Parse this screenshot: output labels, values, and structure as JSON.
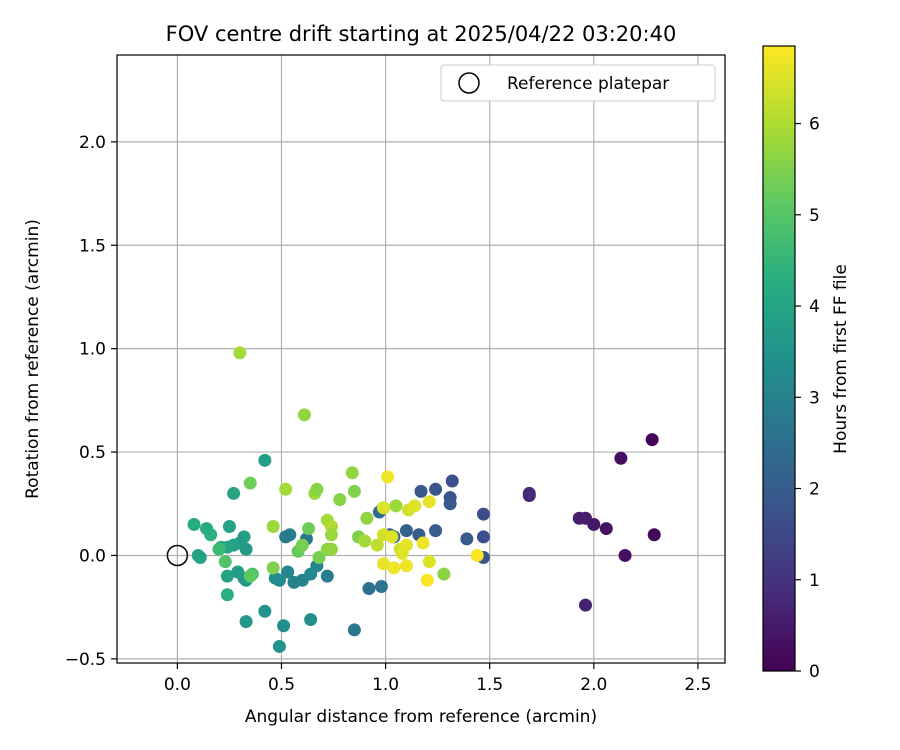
{
  "chart_data": {
    "type": "scatter",
    "title": "FOV centre drift starting at 2025/04/22 03:20:40",
    "xlabel": "Angular distance from reference (arcmin)",
    "ylabel": "Rotation from reference (arcmin)",
    "xlim": [
      -0.29,
      2.63
    ],
    "ylim": [
      -0.52,
      2.42
    ],
    "xticks": [
      0.0,
      0.5,
      1.0,
      1.5,
      2.0,
      2.5
    ],
    "xtick_labels": [
      "0.0",
      "0.5",
      "1.0",
      "1.5",
      "2.0",
      "2.5"
    ],
    "yticks": [
      -0.5,
      0.0,
      0.5,
      1.0,
      1.5,
      2.0
    ],
    "ytick_labels": [
      "−0.5",
      "0.0",
      "0.5",
      "1.0",
      "1.5",
      "2.0"
    ],
    "grid": true,
    "legend": {
      "placement": "top-right",
      "label": "Reference platepar"
    },
    "reference": {
      "x": 0.0,
      "y": 0.0
    },
    "colorbar": {
      "label": "Hours from first FF file",
      "range": [
        0,
        6.85
      ],
      "ticks": [
        0,
        1,
        2,
        3,
        4,
        5,
        6
      ],
      "tick_labels": [
        "0",
        "1",
        "2",
        "3",
        "4",
        "5",
        "6"
      ],
      "colormap": "viridis"
    },
    "points": [
      {
        "x": 2.28,
        "y": 0.56,
        "c": 0.1
      },
      {
        "x": 2.13,
        "y": 0.47,
        "c": 0.25
      },
      {
        "x": 2.29,
        "y": 0.1,
        "c": 0.15
      },
      {
        "x": 2.15,
        "y": 0.0,
        "c": 0.3
      },
      {
        "x": 2.06,
        "y": 0.13,
        "c": 0.35
      },
      {
        "x": 2.0,
        "y": 0.15,
        "c": 0.45
      },
      {
        "x": 1.96,
        "y": 0.18,
        "c": 0.5
      },
      {
        "x": 1.93,
        "y": 0.18,
        "c": 0.6
      },
      {
        "x": 1.96,
        "y": -0.24,
        "c": 0.65
      },
      {
        "x": 1.69,
        "y": 0.29,
        "c": 0.7
      },
      {
        "x": 1.69,
        "y": 0.3,
        "c": 0.8
      },
      {
        "x": 1.47,
        "y": 0.2,
        "c": 1.6
      },
      {
        "x": 1.47,
        "y": 0.09,
        "c": 1.7
      },
      {
        "x": 1.47,
        "y": -0.01,
        "c": 1.8
      },
      {
        "x": 1.39,
        "y": 0.08,
        "c": 1.9
      },
      {
        "x": 1.32,
        "y": 0.36,
        "c": 1.7
      },
      {
        "x": 1.31,
        "y": 0.28,
        "c": 1.75
      },
      {
        "x": 1.31,
        "y": 0.25,
        "c": 1.9
      },
      {
        "x": 1.24,
        "y": 0.32,
        "c": 1.8
      },
      {
        "x": 1.24,
        "y": 0.12,
        "c": 2.0
      },
      {
        "x": 1.17,
        "y": 0.31,
        "c": 1.9
      },
      {
        "x": 1.16,
        "y": 0.1,
        "c": 2.0
      },
      {
        "x": 1.1,
        "y": 0.12,
        "c": 2.1
      },
      {
        "x": 1.04,
        "y": 0.09,
        "c": 2.2
      },
      {
        "x": 1.02,
        "y": 0.1,
        "c": 2.1
      },
      {
        "x": 0.99,
        "y": 0.23,
        "c": 2.3
      },
      {
        "x": 0.97,
        "y": 0.21,
        "c": 2.4
      },
      {
        "x": 0.98,
        "y": -0.15,
        "c": 2.6
      },
      {
        "x": 0.92,
        "y": -0.16,
        "c": 2.5
      },
      {
        "x": 0.85,
        "y": -0.36,
        "c": 2.7
      },
      {
        "x": 0.72,
        "y": -0.1,
        "c": 2.9
      },
      {
        "x": 0.67,
        "y": -0.05,
        "c": 3.1
      },
      {
        "x": 0.64,
        "y": -0.09,
        "c": 3.2
      },
      {
        "x": 0.64,
        "y": -0.31,
        "c": 3.3
      },
      {
        "x": 0.62,
        "y": 0.08,
        "c": 2.7
      },
      {
        "x": 0.6,
        "y": -0.12,
        "c": 3.0
      },
      {
        "x": 0.56,
        "y": -0.13,
        "c": 3.0
      },
      {
        "x": 0.54,
        "y": 0.1,
        "c": 2.9
      },
      {
        "x": 0.52,
        "y": 0.09,
        "c": 2.8
      },
      {
        "x": 0.53,
        "y": -0.08,
        "c": 3.1
      },
      {
        "x": 0.51,
        "y": -0.34,
        "c": 3.4
      },
      {
        "x": 0.49,
        "y": -0.44,
        "c": 3.5
      },
      {
        "x": 0.49,
        "y": -0.12,
        "c": 3.2
      },
      {
        "x": 0.47,
        "y": -0.11,
        "c": 3.3
      },
      {
        "x": 0.42,
        "y": -0.27,
        "c": 3.5
      },
      {
        "x": 0.42,
        "y": 0.46,
        "c": 3.8
      },
      {
        "x": 0.33,
        "y": -0.32,
        "c": 3.6
      },
      {
        "x": 0.33,
        "y": -0.12,
        "c": 3.5
      },
      {
        "x": 0.32,
        "y": -0.11,
        "c": 3.6
      },
      {
        "x": 0.33,
        "y": 0.03,
        "c": 3.7
      },
      {
        "x": 0.32,
        "y": 0.09,
        "c": 3.8
      },
      {
        "x": 0.3,
        "y": 0.06,
        "c": 3.7
      },
      {
        "x": 0.29,
        "y": -0.08,
        "c": 3.8
      },
      {
        "x": 0.27,
        "y": 0.05,
        "c": 3.9
      },
      {
        "x": 0.27,
        "y": 0.3,
        "c": 4.0
      },
      {
        "x": 0.25,
        "y": 0.14,
        "c": 3.9
      },
      {
        "x": 0.24,
        "y": 0.04,
        "c": 4.0
      },
      {
        "x": 0.24,
        "y": -0.1,
        "c": 3.9
      },
      {
        "x": 0.24,
        "y": -0.19,
        "c": 4.3
      },
      {
        "x": 0.21,
        "y": 0.04,
        "c": 4.1
      },
      {
        "x": 0.2,
        "y": 0.03,
        "c": 4.6
      },
      {
        "x": 0.16,
        "y": 0.1,
        "c": 4.4
      },
      {
        "x": 0.14,
        "y": 0.13,
        "c": 4.2
      },
      {
        "x": 0.11,
        "y": -0.01,
        "c": 4.0
      },
      {
        "x": 0.1,
        "y": 0.0,
        "c": 3.9
      },
      {
        "x": 0.08,
        "y": 0.15,
        "c": 4.2
      },
      {
        "x": 0.23,
        "y": -0.03,
        "c": 4.9
      },
      {
        "x": 0.35,
        "y": 0.35,
        "c": 5.3
      },
      {
        "x": 0.36,
        "y": -0.09,
        "c": 4.9
      },
      {
        "x": 0.35,
        "y": -0.1,
        "c": 5.1
      },
      {
        "x": 0.46,
        "y": 0.14,
        "c": 5.8
      },
      {
        "x": 0.46,
        "y": -0.06,
        "c": 5.5
      },
      {
        "x": 0.52,
        "y": 0.32,
        "c": 5.9
      },
      {
        "x": 0.58,
        "y": 0.02,
        "c": 5.2
      },
      {
        "x": 0.6,
        "y": 0.05,
        "c": 5.4
      },
      {
        "x": 0.61,
        "y": 0.68,
        "c": 5.7
      },
      {
        "x": 0.63,
        "y": 0.13,
        "c": 5.3
      },
      {
        "x": 0.66,
        "y": 0.3,
        "c": 5.8
      },
      {
        "x": 0.67,
        "y": 0.32,
        "c": 5.6
      },
      {
        "x": 0.68,
        "y": -0.01,
        "c": 5.4
      },
      {
        "x": 0.72,
        "y": 0.03,
        "c": 5.6
      },
      {
        "x": 0.72,
        "y": 0.17,
        "c": 5.9
      },
      {
        "x": 0.74,
        "y": 0.03,
        "c": 5.7
      },
      {
        "x": 0.74,
        "y": 0.14,
        "c": 6.0
      },
      {
        "x": 0.74,
        "y": 0.1,
        "c": 5.8
      },
      {
        "x": 0.78,
        "y": 0.27,
        "c": 5.6
      },
      {
        "x": 0.84,
        "y": 0.4,
        "c": 5.7
      },
      {
        "x": 0.85,
        "y": 0.31,
        "c": 5.5
      },
      {
        "x": 0.87,
        "y": 0.09,
        "c": 5.5
      },
      {
        "x": 0.9,
        "y": 0.07,
        "c": 5.9
      },
      {
        "x": 0.91,
        "y": 0.18,
        "c": 5.7
      },
      {
        "x": 0.96,
        "y": 0.05,
        "c": 6.2
      },
      {
        "x": 0.99,
        "y": 0.23,
        "c": 6.5
      },
      {
        "x": 0.99,
        "y": 0.1,
        "c": 6.4
      },
      {
        "x": 0.99,
        "y": -0.04,
        "c": 6.6
      },
      {
        "x": 1.01,
        "y": 0.38,
        "c": 6.7
      },
      {
        "x": 1.03,
        "y": 0.09,
        "c": 6.5
      },
      {
        "x": 1.04,
        "y": -0.06,
        "c": 6.7
      },
      {
        "x": 1.05,
        "y": 0.24,
        "c": 5.8
      },
      {
        "x": 1.07,
        "y": 0.03,
        "c": 6.3
      },
      {
        "x": 1.08,
        "y": 0.01,
        "c": 6.5
      },
      {
        "x": 1.1,
        "y": 0.05,
        "c": 6.6
      },
      {
        "x": 1.1,
        "y": -0.05,
        "c": 6.7
      },
      {
        "x": 1.11,
        "y": 0.22,
        "c": 6.4
      },
      {
        "x": 1.14,
        "y": 0.24,
        "c": 6.5
      },
      {
        "x": 1.18,
        "y": 0.06,
        "c": 6.7
      },
      {
        "x": 1.2,
        "y": -0.12,
        "c": 6.8
      },
      {
        "x": 1.21,
        "y": 0.26,
        "c": 6.6
      },
      {
        "x": 1.21,
        "y": -0.03,
        "c": 6.5
      },
      {
        "x": 1.28,
        "y": -0.09,
        "c": 5.6
      },
      {
        "x": 1.44,
        "y": 0.0,
        "c": 6.8
      },
      {
        "x": 0.3,
        "y": 0.98,
        "c": 5.9
      }
    ]
  }
}
